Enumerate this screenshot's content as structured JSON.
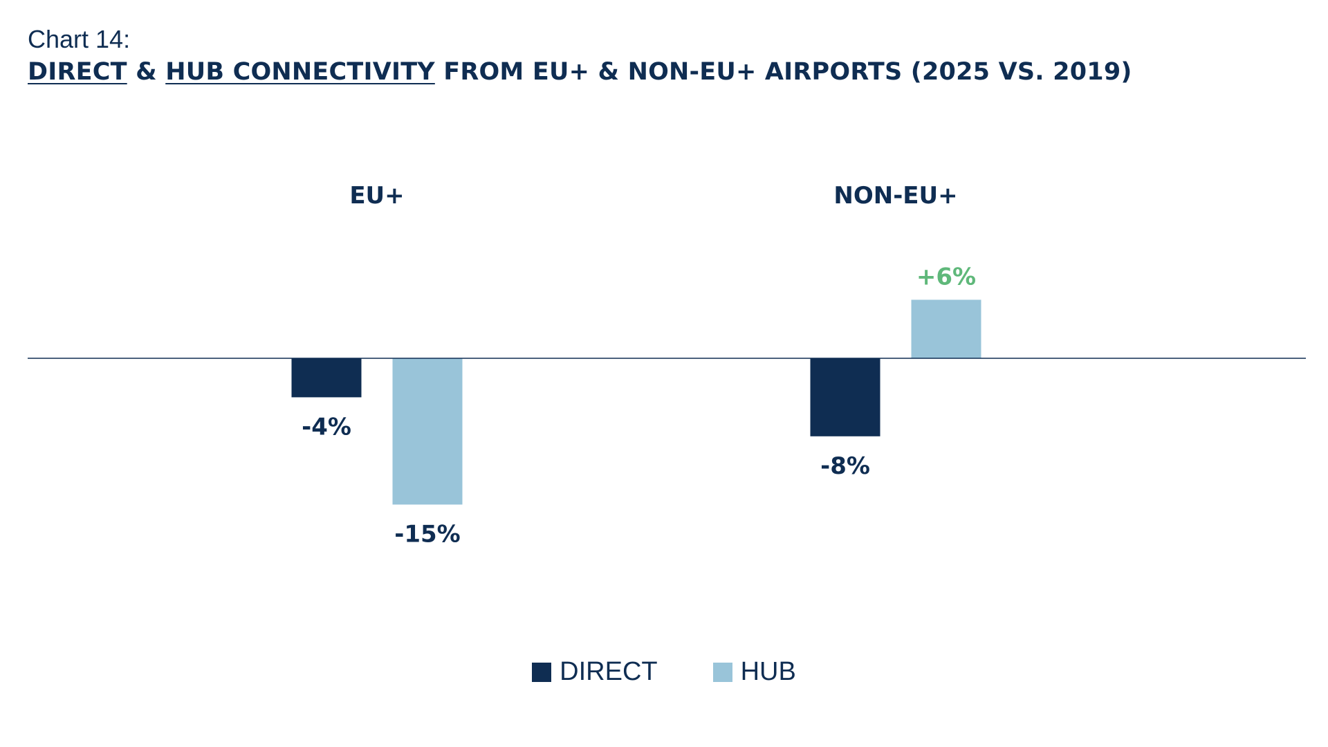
{
  "header": {
    "chart_label": "Chart 14:",
    "title_part1": "DIRECT",
    "title_part2": " & ",
    "title_part3": "HUB CONNECTIVITY",
    "title_part4": " FROM EU+ & NON-EU+ AIRPORTS (2025 VS. 2019)"
  },
  "colors": {
    "direct": "#0f2d52",
    "hub": "#99c4d9",
    "positive_label": "#5fb87a",
    "negative_label": "#0f2d52",
    "baseline": "#0f2d52"
  },
  "legend": {
    "direct_label": "DIRECT",
    "hub_label": "HUB"
  },
  "chart_data": {
    "type": "bar",
    "title": "DIRECT & HUB CONNECTIVITY FROM EU+ & NON-EU+ AIRPORTS (2025 VS. 2019)",
    "categories": [
      "EU+",
      "NON-EU+"
    ],
    "series": [
      {
        "name": "DIRECT",
        "values": [
          -4,
          -8
        ],
        "labels": [
          "-4%",
          "-8%"
        ]
      },
      {
        "name": "HUB",
        "values": [
          -15,
          6
        ],
        "labels": [
          "-15%",
          "+6%"
        ]
      }
    ],
    "unit": "%",
    "grid": false,
    "legend_position": "bottom-center"
  }
}
